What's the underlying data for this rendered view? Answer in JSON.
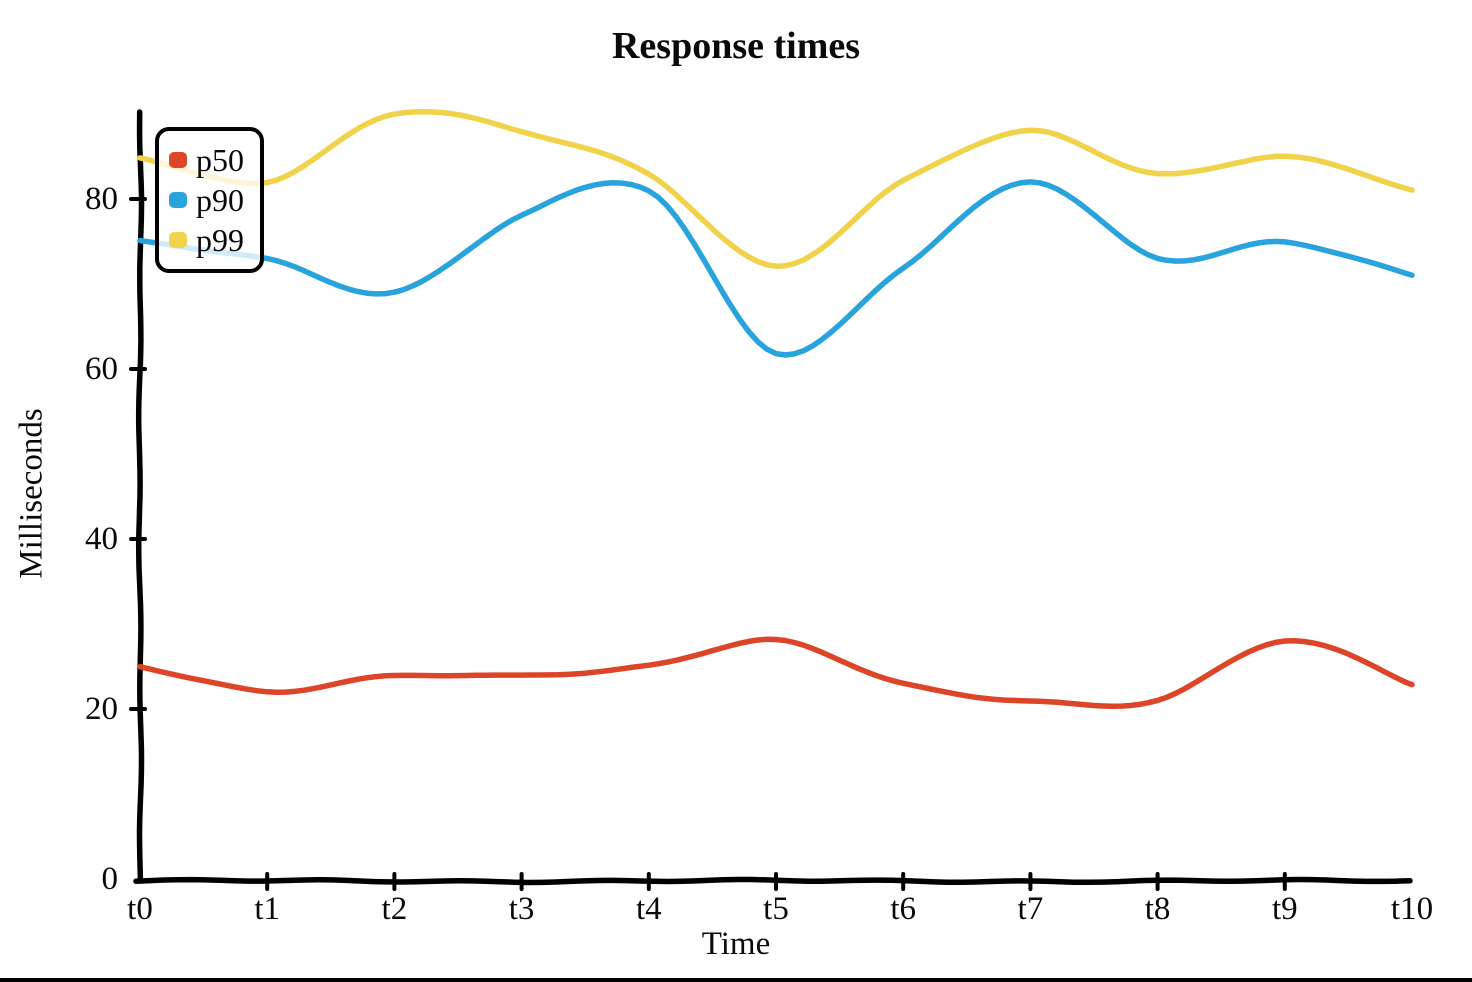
{
  "chart_data": {
    "type": "line",
    "title": "Response times",
    "xlabel": "Time",
    "ylabel": "Milliseconds",
    "categories": [
      "t0",
      "t1",
      "t2",
      "t3",
      "t4",
      "t5",
      "t6",
      "t7",
      "t8",
      "t9",
      "t10"
    ],
    "series": [
      {
        "name": "p50",
        "color": "#dd4528",
        "values": [
          25,
          22,
          24,
          24,
          25,
          28,
          23,
          21,
          21,
          28,
          23
        ]
      },
      {
        "name": "p90",
        "color": "#28a3dc",
        "values": [
          75,
          73,
          69,
          78,
          81,
          62,
          72,
          82,
          73,
          75,
          71
        ]
      },
      {
        "name": "p99",
        "color": "#f0d34a",
        "values": [
          85,
          82,
          90,
          88,
          83,
          72,
          82,
          88,
          83,
          85,
          81
        ]
      }
    ],
    "ylim": [
      0,
      90
    ],
    "yticks": [
      0,
      20,
      40,
      60,
      80
    ],
    "grid": false,
    "legend_position": "top-left",
    "line_style": "hand-drawn",
    "axis_color": "#000000",
    "background_color": "#ffffff"
  }
}
